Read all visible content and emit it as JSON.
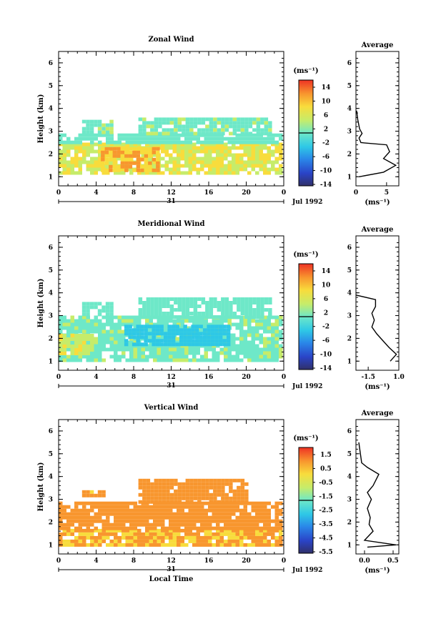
{
  "panels": [
    {
      "title": "Zonal Wind",
      "ylabel": "Height (km)",
      "ylim": [
        0.6,
        6.5
      ],
      "yticks": [
        "1",
        "2",
        "3",
        "4",
        "5",
        "6"
      ],
      "xticks": [
        "0",
        "4",
        "8",
        "12",
        "16",
        "20",
        "0"
      ],
      "date_day": "31",
      "date_label": "Jul 1992",
      "colorbar_unit": "(ms⁻¹)",
      "colorbar_ticks": [
        "14",
        "10",
        "6",
        "2",
        "-2",
        "-6",
        "-10",
        "-14"
      ],
      "avg_title": "Average",
      "avg_xticks": [
        "0",
        "5"
      ],
      "avg_xlabel": "(ms⁻¹)"
    },
    {
      "title": "Meridional Wind",
      "ylabel": "Height (km)",
      "ylim": [
        0.6,
        6.5
      ],
      "yticks": [
        "1",
        "2",
        "3",
        "4",
        "5",
        "6"
      ],
      "xticks": [
        "0",
        "4",
        "8",
        "12",
        "16",
        "20",
        "0"
      ],
      "date_day": "31",
      "date_label": "Jul 1992",
      "colorbar_unit": "(ms⁻¹)",
      "colorbar_ticks": [
        "14",
        "10",
        "6",
        "2",
        "-2",
        "-6",
        "-10",
        "-14"
      ],
      "avg_title": "Average",
      "avg_xticks": [
        "-1.5",
        "1.0"
      ],
      "avg_xlabel": "(ms⁻¹)"
    },
    {
      "title": "Vertical Wind",
      "ylabel": "Height (km)",
      "ylim": [
        0.6,
        6.5
      ],
      "yticks": [
        "1",
        "2",
        "3",
        "4",
        "5",
        "6"
      ],
      "xticks": [
        "0",
        "4",
        "8",
        "12",
        "16",
        "20",
        "0"
      ],
      "date_day": "31",
      "date_label": "Jul 1992",
      "xlabel": "Local Time",
      "colorbar_unit": "(ms⁻¹)",
      "colorbar_ticks": [
        "1.5",
        "0.5",
        "-0.5",
        "-1.5",
        "-2.5",
        "-3.5",
        "-4.5",
        "-5.5"
      ],
      "avg_title": "Average",
      "avg_xticks": [
        "0.0",
        "0.5"
      ],
      "avg_xlabel": "(ms⁻¹)"
    }
  ],
  "chart_data": [
    {
      "type": "heatmap",
      "title": "Zonal Wind",
      "xlabel": "",
      "ylabel": "Height (km)",
      "xlim": [
        0,
        24
      ],
      "ylim": [
        0.6,
        6.5
      ],
      "colorbar_range": [
        -16,
        16
      ],
      "regions": [
        {
          "x": [
            0,
            23.5
          ],
          "y": [
            1.1,
            2.5
          ],
          "value": 6
        },
        {
          "x": [
            4.5,
            10.5
          ],
          "y": [
            1.3,
            2.3
          ],
          "value": 10
        },
        {
          "x": [
            0,
            23.5
          ],
          "y": [
            2.5,
            2.9
          ],
          "value": 0
        },
        {
          "x": [
            2.5,
            5.5
          ],
          "y": [
            2.9,
            3.5
          ],
          "value": 1
        },
        {
          "x": [
            8.5,
            22.5
          ],
          "y": [
            2.9,
            3.6
          ],
          "value": 1
        }
      ],
      "average_profile": {
        "xlim": [
          0,
          7
        ],
        "height": [
          1.0,
          1.2,
          1.5,
          1.8,
          2.1,
          2.4,
          2.5,
          2.7,
          2.9,
          3.1,
          3.5,
          3.9
        ],
        "value": [
          0.5,
          4.5,
          6.5,
          4.5,
          5.5,
          5.0,
          0.8,
          0.5,
          1.0,
          0.6,
          0.3,
          0.1
        ]
      }
    },
    {
      "type": "heatmap",
      "title": "Meridional Wind",
      "xlabel": "",
      "ylabel": "Height (km)",
      "xlim": [
        0,
        24
      ],
      "ylim": [
        0.6,
        6.5
      ],
      "colorbar_range": [
        -16,
        16
      ],
      "regions": [
        {
          "x": [
            0,
            23.5
          ],
          "y": [
            1.1,
            3.0
          ],
          "value": 1
        },
        {
          "x": [
            7,
            18
          ],
          "y": [
            1.8,
            2.6
          ],
          "value": -4
        },
        {
          "x": [
            0,
            3.5
          ],
          "y": [
            1.3,
            2.2
          ],
          "value": 5
        },
        {
          "x": [
            2.5,
            5.5
          ],
          "y": [
            3.0,
            3.6
          ],
          "value": 0
        },
        {
          "x": [
            8.5,
            22.5
          ],
          "y": [
            3.0,
            3.8
          ],
          "value": 0
        }
      ],
      "average_profile": {
        "xlim": [
          -2.5,
          1.0
        ],
        "height": [
          1.0,
          1.3,
          1.6,
          1.9,
          2.2,
          2.5,
          2.8,
          3.1,
          3.4,
          3.7,
          3.9
        ],
        "value": [
          0.3,
          0.8,
          0.2,
          -0.3,
          -0.8,
          -1.2,
          -1.0,
          -1.2,
          -0.9,
          -0.9,
          -2.5
        ]
      }
    },
    {
      "type": "heatmap",
      "title": "Vertical Wind",
      "xlabel": "Local Time",
      "ylabel": "Height (km)",
      "xlim": [
        0,
        24
      ],
      "ylim": [
        0.6,
        6.5
      ],
      "colorbar_range": [
        -6,
        2
      ],
      "regions": [
        {
          "x": [
            0,
            23.5
          ],
          "y": [
            1.0,
            1.7
          ],
          "value": 0.6
        },
        {
          "x": [
            0,
            23.5
          ],
          "y": [
            1.7,
            2.9
          ],
          "value": 1.0
        },
        {
          "x": [
            2.5,
            5.0
          ],
          "y": [
            3.1,
            3.4
          ],
          "value": 0.8
        },
        {
          "x": [
            8.5,
            20
          ],
          "y": [
            2.9,
            3.9
          ],
          "value": 1.0
        }
      ],
      "average_profile": {
        "xlim": [
          -0.15,
          0.6
        ],
        "height": [
          0.9,
          1.0,
          1.2,
          1.6,
          1.9,
          2.2,
          2.6,
          3.0,
          3.3,
          3.6,
          4.1,
          4.4,
          4.6,
          5.5
        ],
        "value": [
          0.05,
          0.55,
          0.0,
          0.15,
          0.08,
          0.1,
          0.05,
          0.12,
          0.05,
          0.15,
          0.25,
          0.05,
          -0.05,
          -0.1
        ]
      }
    }
  ]
}
